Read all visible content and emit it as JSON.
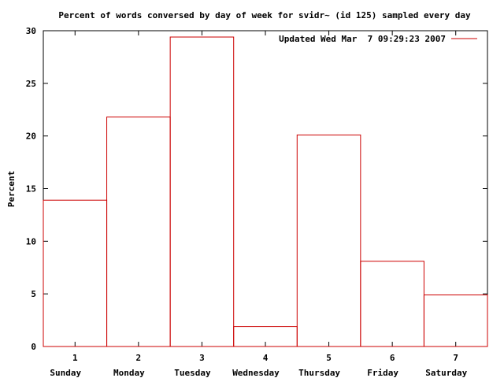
{
  "chart_data": {
    "type": "bar",
    "title": "Percent of words conversed by day of week for svidr~ (id 125) sampled every day",
    "ylabel": "Percent",
    "xlabel": "",
    "x": [
      1,
      2,
      3,
      4,
      5,
      6,
      7
    ],
    "categories": [
      "Sunday",
      "Monday",
      "Tuesday",
      "Wednesday",
      "Thursday",
      "Friday",
      "Saturday"
    ],
    "series": [
      {
        "name": "Updated Wed Mar  7 09:29:23 2007",
        "color": "#cc0000",
        "values": [
          13.9,
          21.8,
          29.4,
          1.9,
          20.1,
          8.1,
          4.9
        ]
      }
    ],
    "ylim": [
      0,
      30
    ],
    "yticks": [
      0,
      5,
      10,
      15,
      20,
      25,
      30
    ],
    "xlim": [
      0.5,
      7.5
    ],
    "style": "histogram-steps",
    "grid": false,
    "legend_position": "top-right"
  }
}
